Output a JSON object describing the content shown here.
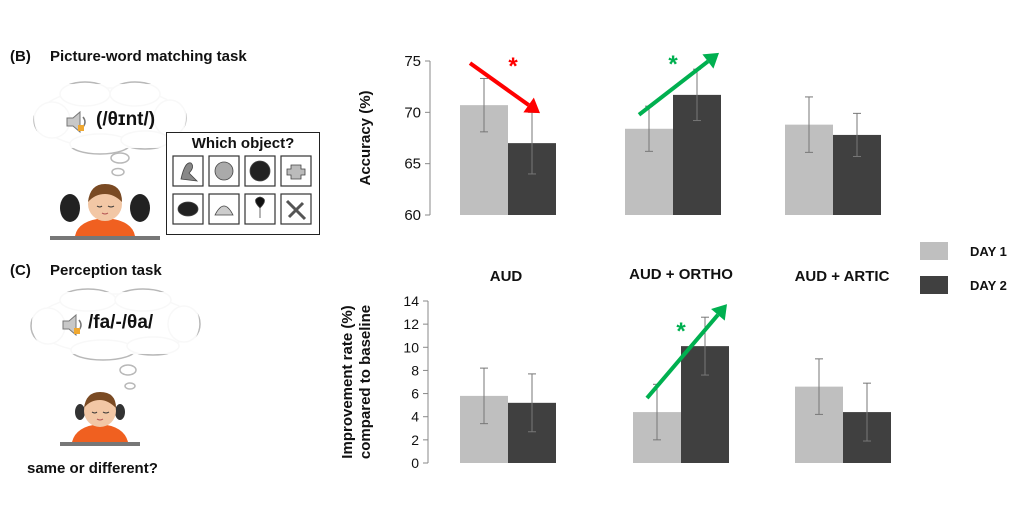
{
  "panel_b": {
    "label": "(B)",
    "title": "Picture-word matching task",
    "bubble_text": "(/θɪnt/)",
    "grid_title": "Which object?"
  },
  "panel_c": {
    "label": "(C)",
    "title": "Perception task",
    "bubble_text": "/fa/-/θa/",
    "question": "same or different?"
  },
  "legend": [
    {
      "label": "DAY 1",
      "color": "#bfbfbf"
    },
    {
      "label": "DAY 2",
      "color": "#404040"
    }
  ],
  "conditions": [
    "AUD",
    "AUD + ORTHO",
    "AUD + ARTIC"
  ],
  "chart_data": [
    {
      "type": "bar",
      "ylabel": "Accuracy (%)",
      "ylim": [
        60,
        75
      ],
      "yticks": [
        60,
        65,
        70,
        75
      ],
      "categories": [
        "AUD",
        "AUD + ORTHO",
        "AUD + ARTIC"
      ],
      "series": [
        {
          "name": "DAY 1",
          "values": [
            70.7,
            68.4,
            68.8
          ],
          "errors": [
            2.6,
            2.2,
            2.7
          ]
        },
        {
          "name": "DAY 2",
          "values": [
            67.0,
            71.7,
            67.8
          ],
          "errors": [
            3.0,
            2.5,
            2.1
          ]
        }
      ],
      "annotations": [
        {
          "type": "arrow",
          "direction": "down",
          "label": "*",
          "color": "#ff0000",
          "category": "AUD"
        },
        {
          "type": "arrow",
          "direction": "up",
          "label": "*",
          "color": "#00b050",
          "category": "AUD + ORTHO"
        }
      ]
    },
    {
      "type": "bar",
      "ylabel": "Improvement rate (%) compared to baseline",
      "ylabel_lines": [
        "Improvement rate (%)",
        "compared to baseline"
      ],
      "ylim": [
        0,
        14
      ],
      "yticks": [
        0,
        2,
        4,
        6,
        8,
        10,
        12,
        14
      ],
      "categories": [
        "AUD",
        "AUD + ORTHO",
        "AUD + ARTIC"
      ],
      "series": [
        {
          "name": "DAY 1",
          "values": [
            5.8,
            4.4,
            6.6
          ],
          "errors": [
            2.4,
            2.4,
            2.4
          ]
        },
        {
          "name": "DAY 2",
          "values": [
            5.2,
            10.1,
            4.4
          ],
          "errors": [
            2.5,
            2.5,
            2.5
          ]
        }
      ],
      "annotations": [
        {
          "type": "arrow",
          "direction": "up",
          "label": "*",
          "color": "#00b050",
          "category": "AUD + ORTHO"
        }
      ]
    }
  ]
}
